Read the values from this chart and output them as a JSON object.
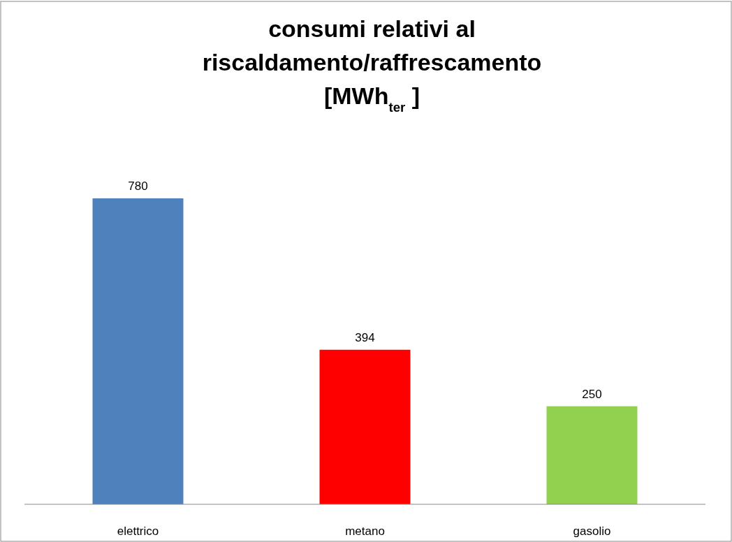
{
  "chart_data": {
    "type": "bar",
    "title": "consumi relativi al\nriscaldamento/raffrescamento\n[MWh$_{ter}$ ]",
    "categories": [
      "elettrico",
      "metano",
      "gasolio"
    ],
    "values": [
      780,
      394,
      250
    ],
    "colors": [
      "#4f81bd",
      "#ff0000",
      "#92d050"
    ],
    "data_labels": true
  }
}
